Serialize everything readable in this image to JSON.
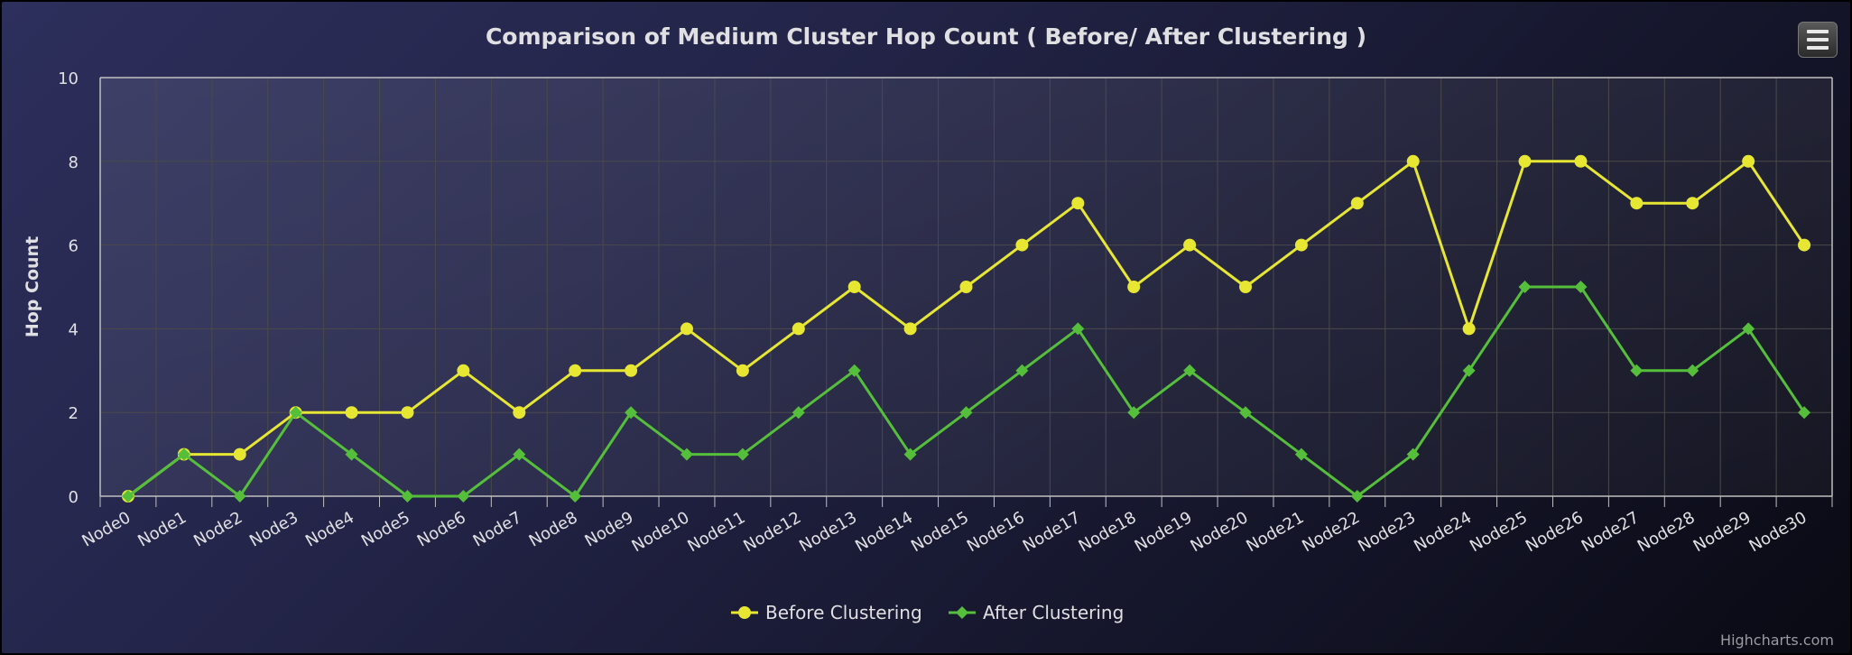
{
  "credits": "Highcharts.com",
  "menu": {
    "icon": "hamburger-menu-icon"
  },
  "colors": {
    "before": "#e6e633",
    "after": "#55bf3b",
    "text": "#e0e0e3",
    "axis_line": "#c0c0c0",
    "grid": "#4a4a4a"
  },
  "chart_data": {
    "type": "line",
    "title": "Comparison of Medium Cluster Hop Count ( Before/ After Clustering )",
    "xlabel": "",
    "ylabel": "Hop Count",
    "ylim": [
      0,
      10
    ],
    "yticks": [
      0,
      2,
      4,
      6,
      8,
      10
    ],
    "grid": true,
    "legend_position": "bottom-center",
    "categories": [
      "Node0",
      "Node1",
      "Node2",
      "Node3",
      "Node4",
      "Node5",
      "Node6",
      "Node7",
      "Node8",
      "Node9",
      "Node10",
      "Node11",
      "Node12",
      "Node13",
      "Node14",
      "Node15",
      "Node16",
      "Node17",
      "Node18",
      "Node19",
      "Node20",
      "Node21",
      "Node22",
      "Node23",
      "Node24",
      "Node25",
      "Node26",
      "Node27",
      "Node28",
      "Node29",
      "Node30"
    ],
    "series": [
      {
        "name": "Before Clustering",
        "marker": "circle",
        "values": [
          0,
          1,
          1,
          2,
          2,
          2,
          3,
          2,
          3,
          3,
          4,
          3,
          4,
          5,
          4,
          5,
          6,
          7,
          5,
          6,
          5,
          6,
          7,
          8,
          4,
          8,
          8,
          7,
          7,
          8,
          6
        ]
      },
      {
        "name": "After Clustering",
        "marker": "diamond",
        "values": [
          0,
          1,
          0,
          2,
          1,
          0,
          0,
          1,
          0,
          2,
          1,
          1,
          2,
          3,
          1,
          2,
          3,
          4,
          2,
          3,
          2,
          1,
          0,
          1,
          3,
          5,
          5,
          3,
          3,
          4,
          2
        ]
      }
    ]
  }
}
